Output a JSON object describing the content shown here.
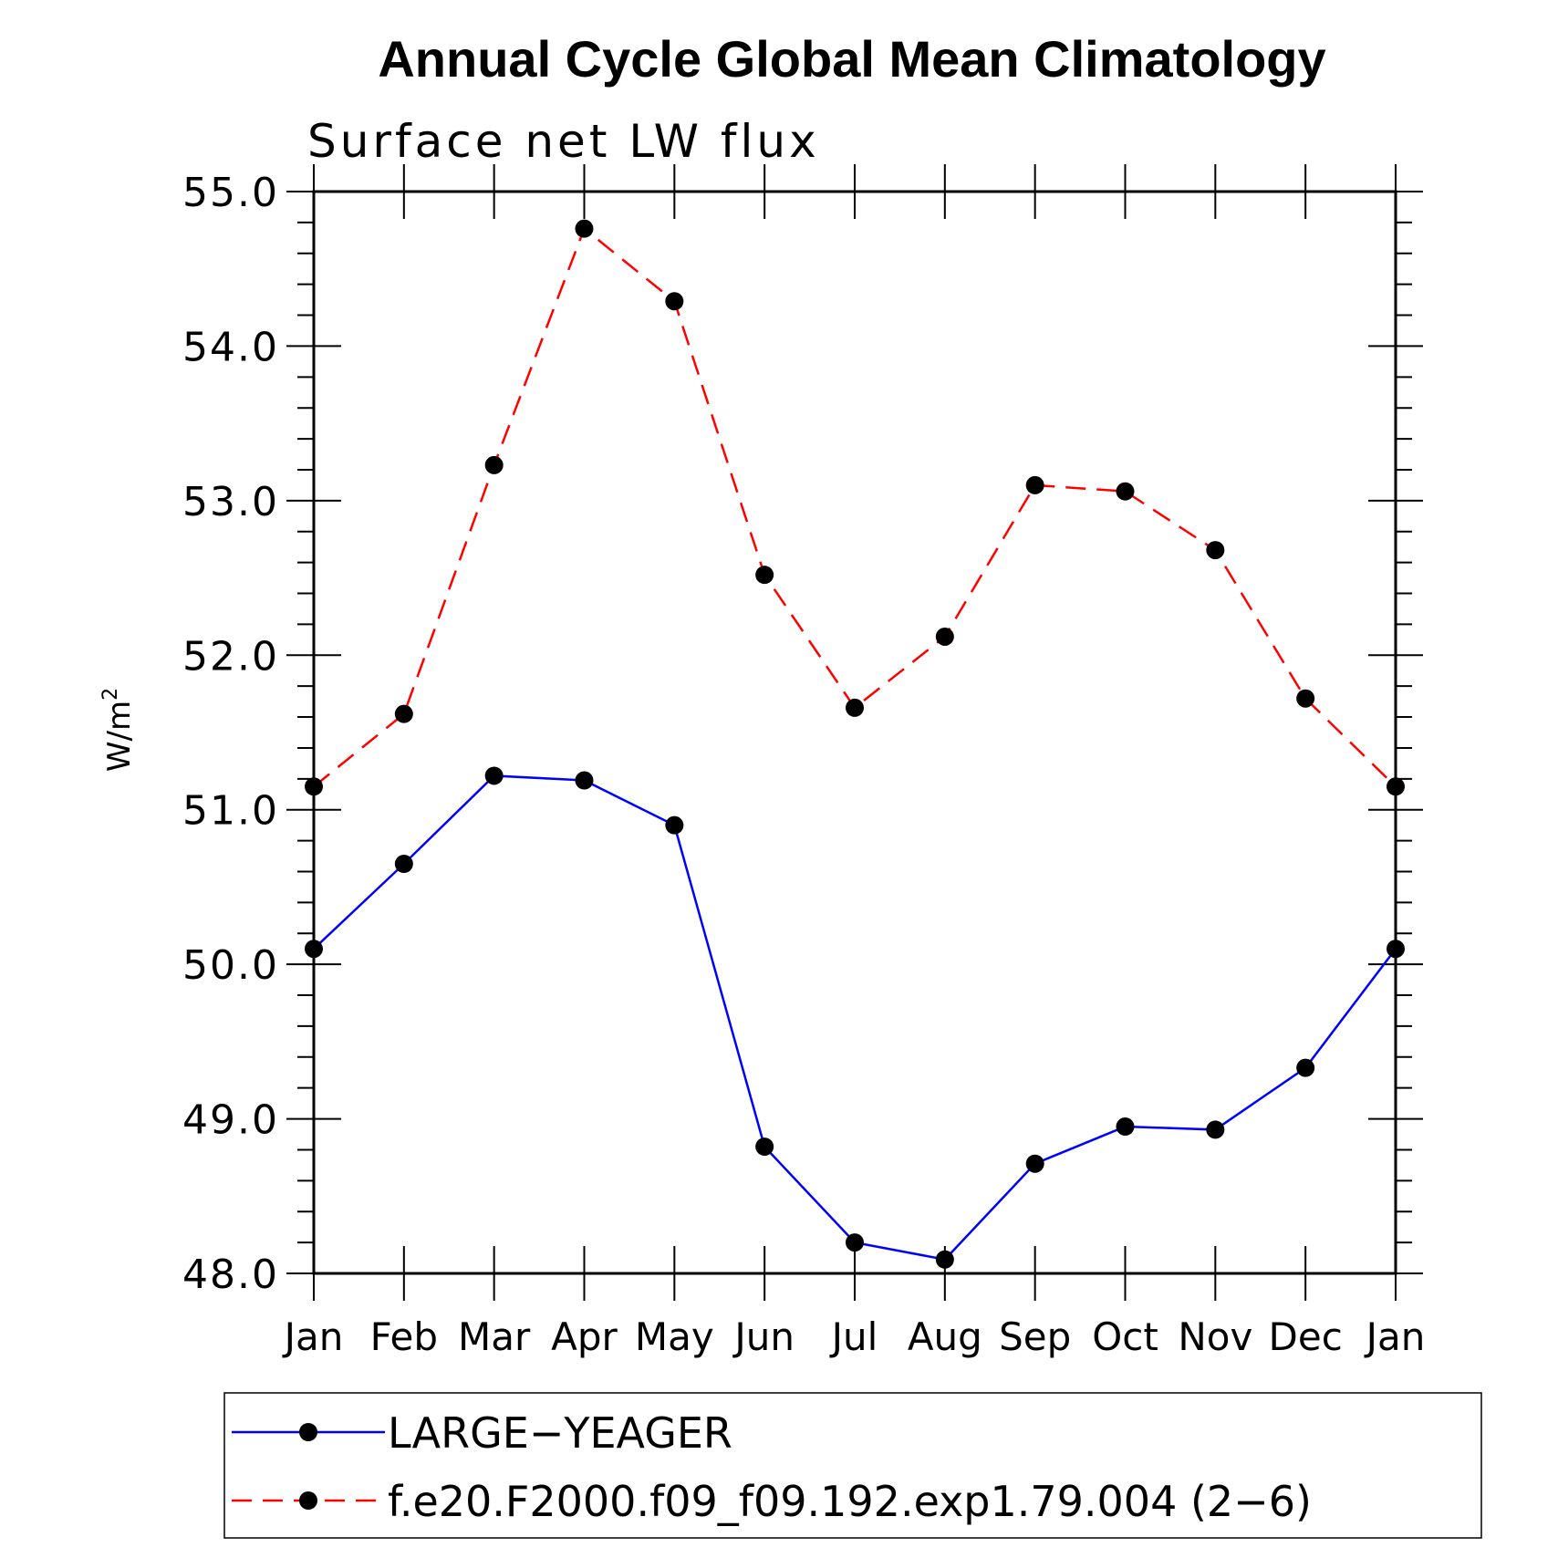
{
  "chart_data": {
    "type": "line",
    "title": "Annual Cycle Global Mean Climatology",
    "subtitle": "Surface net LW flux",
    "ylabel": "W/m",
    "ylabel_superscript": "2",
    "ylim": [
      48.0,
      55.0
    ],
    "yticks": [
      "48.0",
      "49.0",
      "50.0",
      "51.0",
      "52.0",
      "53.0",
      "54.0",
      "55.0"
    ],
    "categories": [
      "Jan",
      "Feb",
      "Mar",
      "Apr",
      "May",
      "Jun",
      "Jul",
      "Aug",
      "Sep",
      "Oct",
      "Nov",
      "Dec",
      "Jan"
    ],
    "series": [
      {
        "name": "LARGE−YEAGER",
        "color": "#0000ff",
        "dash": "solid",
        "values": [
          50.1,
          50.65,
          51.22,
          51.19,
          50.9,
          48.82,
          48.2,
          48.09,
          48.71,
          48.95,
          48.93,
          49.33,
          50.1
        ]
      },
      {
        "name": "f.e20.F2000.f09_f09.192.exp1.79.004 (2−6)",
        "color": "#ff0000",
        "dash": "dashed",
        "values": [
          51.15,
          51.62,
          53.23,
          54.76,
          54.29,
          52.52,
          51.66,
          52.12,
          53.1,
          53.06,
          52.68,
          51.72,
          51.15
        ]
      }
    ],
    "marker_color": "#000000"
  }
}
